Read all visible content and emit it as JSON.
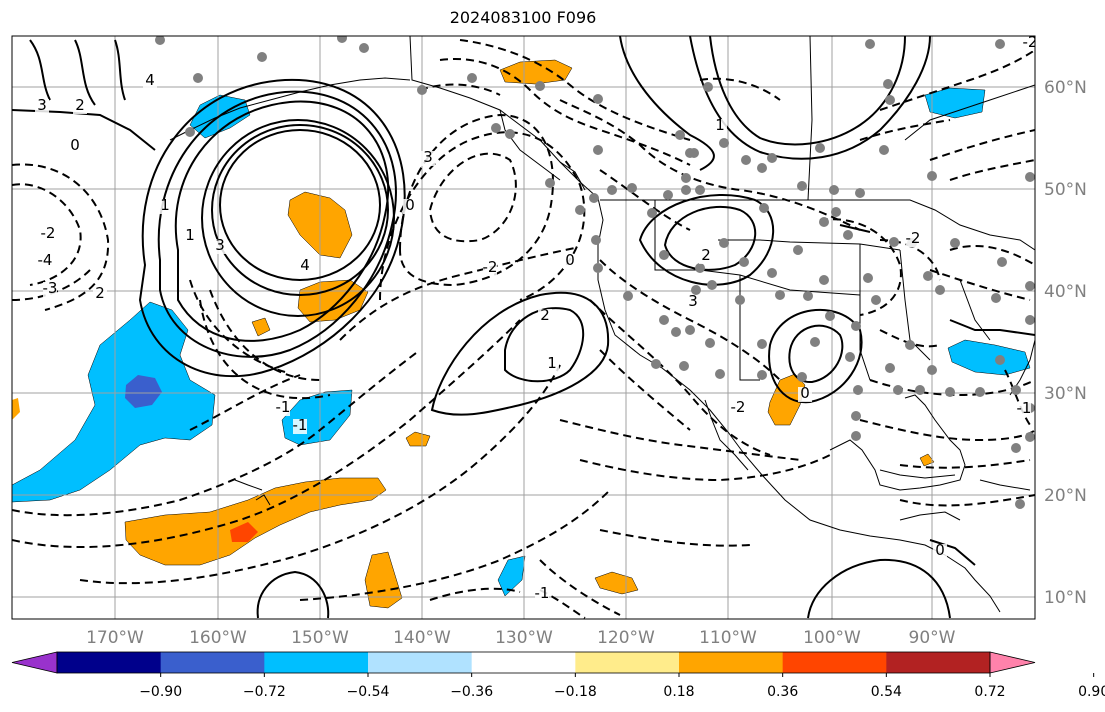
{
  "title": "2024083100 F096",
  "lon_labels": [
    "170°W",
    "160°W",
    "150°W",
    "140°W",
    "130°W",
    "120°W",
    "110°W",
    "100°W",
    "90°W"
  ],
  "lat_labels": [
    "60°N",
    "50°N",
    "40°N",
    "30°N",
    "20°N",
    "10°N"
  ],
  "colorbar": {
    "colors": [
      "#9932cc",
      "#00008b",
      "#3a5fcd",
      "#00bfff",
      "#b0e2ff",
      "#ffffff",
      "#ffec8b",
      "#ffa500",
      "#ff4500",
      "#b22222",
      "#ff82ab"
    ],
    "tick_labels": [
      "−0.90",
      "−0.72",
      "−0.54",
      "−0.36",
      "−0.18",
      "0.18",
      "0.36",
      "0.54",
      "0.72",
      "0.90"
    ]
  },
  "contour_labels": [
    "3",
    "2",
    "4",
    "0",
    "1",
    "-2",
    "-4",
    "-3",
    "2",
    "3",
    "4",
    "1",
    "0",
    "3",
    "-2",
    "0",
    "2",
    "-1",
    "-1",
    "-1",
    "1",
    "2",
    "3",
    "-2",
    "-2",
    "-1",
    "0",
    "0",
    "-2",
    "1"
  ]
}
